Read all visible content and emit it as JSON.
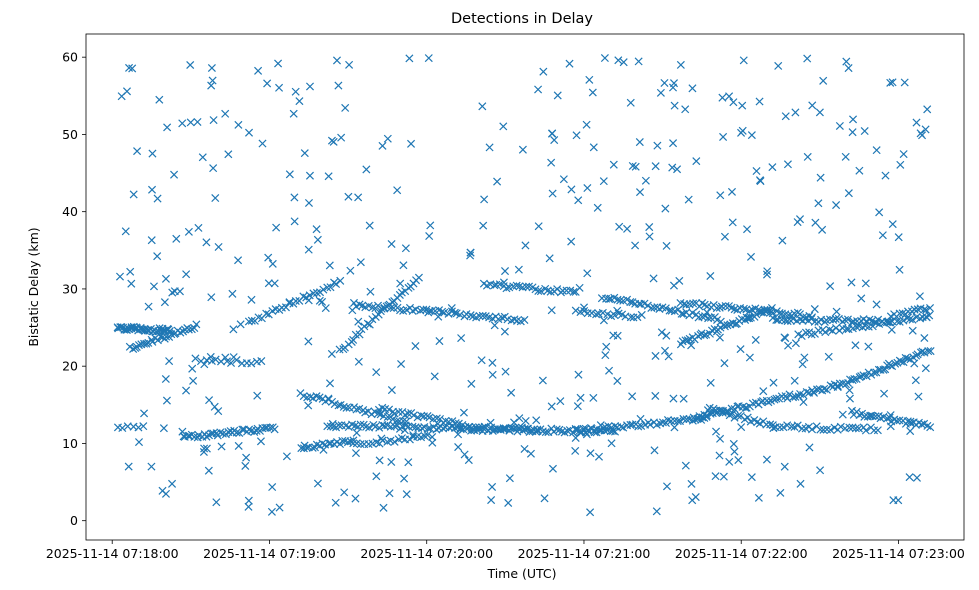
{
  "chart_data": {
    "type": "scatter",
    "title": "Detections in Delay",
    "xlabel": "Time (UTC)",
    "ylabel": "Bistatic Delay (km)",
    "marker": "x",
    "color": "#1f77b4",
    "xlim": [
      "2025-11-14 07:17:50",
      "2025-11-14 07:23:25"
    ],
    "ylim": [
      -2.5,
      63
    ],
    "xticks": [
      "2025-11-14 07:18:00",
      "2025-11-14 07:19:00",
      "2025-11-14 07:20:00",
      "2025-11-14 07:21:00",
      "2025-11-14 07:22:00",
      "2025-11-14 07:23:00"
    ],
    "yticks": [
      0,
      10,
      20,
      30,
      40,
      50,
      60
    ],
    "grid": false,
    "legend": "none",
    "tracks": [
      {
        "start": "2025-11-14 07:18:02",
        "end": "2025-11-14 07:18:22",
        "y_start": 25.0,
        "y_end": 24.6,
        "count": 40
      },
      {
        "start": "2025-11-14 07:18:07",
        "end": "2025-11-14 07:18:32",
        "y_start": 22.3,
        "y_end": 25.2,
        "count": 30
      },
      {
        "start": "2025-11-14 07:18:32",
        "end": "2025-11-14 07:18:57",
        "y_start": 20.8,
        "y_end": 20.5,
        "count": 14
      },
      {
        "start": "2025-11-14 07:18:52",
        "end": "2025-11-14 07:19:27",
        "y_start": 25.6,
        "y_end": 31.0,
        "count": 28
      },
      {
        "start": "2025-11-14 07:19:27",
        "end": "2025-11-14 07:19:57",
        "y_start": 22.0,
        "y_end": 31.5,
        "count": 30
      },
      {
        "start": "2025-11-14 07:19:32",
        "end": "2025-11-14 07:20:37",
        "y_start": 28.0,
        "y_end": 26.0,
        "count": 55
      },
      {
        "start": "2025-11-14 07:20:22",
        "end": "2025-11-14 07:20:57",
        "y_start": 30.6,
        "y_end": 29.5,
        "count": 30
      },
      {
        "start": "2025-11-14 07:20:57",
        "end": "2025-11-14 07:21:22",
        "y_start": 27.0,
        "y_end": 26.4,
        "count": 18
      },
      {
        "start": "2025-11-14 07:21:07",
        "end": "2025-11-14 07:21:52",
        "y_start": 29.0,
        "y_end": 26.0,
        "count": 40
      },
      {
        "start": "2025-11-14 07:21:37",
        "end": "2025-11-14 07:22:27",
        "y_start": 28.2,
        "y_end": 26.5,
        "count": 45
      },
      {
        "start": "2025-11-14 07:21:37",
        "end": "2025-11-14 07:22:12",
        "y_start": 23.0,
        "y_end": 27.5,
        "count": 40
      },
      {
        "start": "2025-11-14 07:22:12",
        "end": "2025-11-14 07:22:57",
        "y_start": 26.0,
        "y_end": 25.8,
        "count": 40
      },
      {
        "start": "2025-11-14 07:22:22",
        "end": "2025-11-14 07:23:12",
        "y_start": 24.0,
        "y_end": 26.5,
        "count": 40
      },
      {
        "start": "2025-11-14 07:22:57",
        "end": "2025-11-14 07:23:12",
        "y_start": 26.5,
        "y_end": 27.5,
        "count": 14
      },
      {
        "start": "2025-11-14 07:18:02",
        "end": "2025-11-14 07:18:12",
        "y_start": 12.2,
        "y_end": 12.2,
        "count": 6
      },
      {
        "start": "2025-11-14 07:18:27",
        "end": "2025-11-14 07:19:02",
        "y_start": 10.8,
        "y_end": 12.0,
        "count": 40
      },
      {
        "start": "2025-11-14 07:19:12",
        "end": "2025-11-14 07:19:32",
        "y_start": 9.3,
        "y_end": 10.4,
        "count": 20
      },
      {
        "start": "2025-11-14 07:19:12",
        "end": "2025-11-14 07:19:52",
        "y_start": 16.4,
        "y_end": 12.8,
        "count": 35
      },
      {
        "start": "2025-11-14 07:19:22",
        "end": "2025-11-14 07:20:42",
        "y_start": 12.3,
        "y_end": 11.8,
        "count": 70
      },
      {
        "start": "2025-11-14 07:19:42",
        "end": "2025-11-14 07:20:17",
        "y_start": 14.5,
        "y_end": 12.2,
        "count": 30
      },
      {
        "start": "2025-11-14 07:19:32",
        "end": "2025-11-14 07:20:02",
        "y_start": 9.8,
        "y_end": 11.0,
        "count": 22
      },
      {
        "start": "2025-11-14 07:20:17",
        "end": "2025-11-14 07:21:12",
        "y_start": 11.8,
        "y_end": 11.6,
        "count": 55
      },
      {
        "start": "2025-11-14 07:20:57",
        "end": "2025-11-14 07:21:47",
        "y_start": 11.6,
        "y_end": 13.3,
        "count": 45
      },
      {
        "start": "2025-11-14 07:21:42",
        "end": "2025-11-14 07:22:37",
        "y_start": 13.3,
        "y_end": 17.5,
        "count": 55
      },
      {
        "start": "2025-11-14 07:22:37",
        "end": "2025-11-14 07:23:12",
        "y_start": 17.5,
        "y_end": 22.0,
        "count": 40
      },
      {
        "start": "2025-11-14 07:21:47",
        "end": "2025-11-14 07:22:12",
        "y_start": 14.5,
        "y_end": 12.3,
        "count": 22
      },
      {
        "start": "2025-11-14 07:22:12",
        "end": "2025-11-14 07:22:52",
        "y_start": 12.2,
        "y_end": 11.8,
        "count": 30
      },
      {
        "start": "2025-11-14 07:22:42",
        "end": "2025-11-14 07:23:12",
        "y_start": 14.0,
        "y_end": 12.2,
        "count": 30
      }
    ],
    "scatter_count": 470,
    "scatter_ymax": 60
  }
}
